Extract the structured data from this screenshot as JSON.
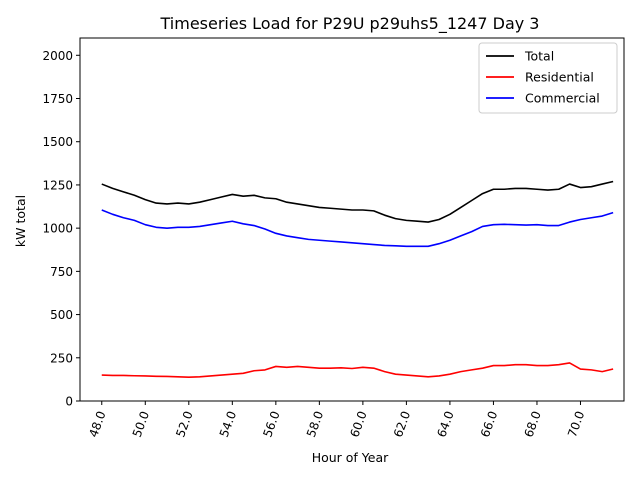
{
  "chart_data": {
    "type": "line",
    "title": "Timeseries Load for P29U p29uhs5_1247  Day 3",
    "xlabel": "Hour of Year",
    "ylabel": "kW total",
    "xlim": [
      47.0,
      72.0
    ],
    "ylim": [
      0,
      2100
    ],
    "x_ticks": [
      48,
      50,
      52,
      54,
      56,
      58,
      60,
      62,
      64,
      66,
      68,
      70
    ],
    "x_tick_labels": [
      "48.0",
      "50.0",
      "52.0",
      "54.0",
      "56.0",
      "58.0",
      "60.0",
      "62.0",
      "64.0",
      "66.0",
      "68.0",
      "70.0"
    ],
    "y_ticks": [
      0,
      250,
      500,
      750,
      1000,
      1250,
      1500,
      1750,
      2000
    ],
    "y_tick_labels": [
      "0",
      "250",
      "500",
      "750",
      "1000",
      "1250",
      "1500",
      "1750",
      "2000"
    ],
    "grid": false,
    "legend_position": "top-right",
    "x": [
      48.0,
      48.5,
      49.0,
      49.5,
      50.0,
      50.5,
      51.0,
      51.5,
      52.0,
      52.5,
      53.0,
      53.5,
      54.0,
      54.5,
      55.0,
      55.5,
      56.0,
      56.5,
      57.0,
      57.5,
      58.0,
      58.5,
      59.0,
      59.5,
      60.0,
      60.5,
      61.0,
      61.5,
      62.0,
      62.5,
      63.0,
      63.5,
      64.0,
      64.5,
      65.0,
      65.5,
      66.0,
      66.5,
      67.0,
      67.5,
      68.0,
      68.5,
      69.0,
      69.5,
      70.0,
      70.5,
      71.0,
      71.5
    ],
    "series": [
      {
        "name": "Total",
        "color": "#000000",
        "values": [
          1255,
          1230,
          1210,
          1190,
          1165,
          1145,
          1140,
          1145,
          1140,
          1150,
          1165,
          1180,
          1195,
          1185,
          1190,
          1175,
          1170,
          1150,
          1140,
          1130,
          1120,
          1115,
          1110,
          1105,
          1105,
          1100,
          1075,
          1055,
          1045,
          1040,
          1035,
          1050,
          1080,
          1120,
          1160,
          1200,
          1225,
          1225,
          1230,
          1230,
          1225,
          1220,
          1225,
          1255,
          1235,
          1240,
          1255,
          1270
        ]
      },
      {
        "name": "Residential",
        "color": "#ff0000",
        "values": [
          150,
          148,
          148,
          146,
          145,
          143,
          142,
          140,
          138,
          140,
          145,
          150,
          155,
          160,
          175,
          180,
          200,
          195,
          200,
          195,
          190,
          190,
          192,
          188,
          195,
          190,
          170,
          155,
          150,
          145,
          140,
          145,
          155,
          170,
          180,
          190,
          205,
          205,
          210,
          210,
          205,
          205,
          210,
          220,
          185,
          180,
          170,
          185
        ]
      },
      {
        "name": "Commercial",
        "color": "#0000ff",
        "values": [
          1105,
          1080,
          1060,
          1045,
          1020,
          1005,
          1000,
          1005,
          1005,
          1010,
          1020,
          1030,
          1040,
          1025,
          1015,
          995,
          970,
          955,
          945,
          935,
          930,
          925,
          920,
          915,
          910,
          905,
          900,
          898,
          895,
          895,
          895,
          910,
          930,
          955,
          980,
          1010,
          1020,
          1022,
          1020,
          1018,
          1020,
          1015,
          1015,
          1035,
          1050,
          1060,
          1070,
          1090
        ]
      }
    ]
  }
}
